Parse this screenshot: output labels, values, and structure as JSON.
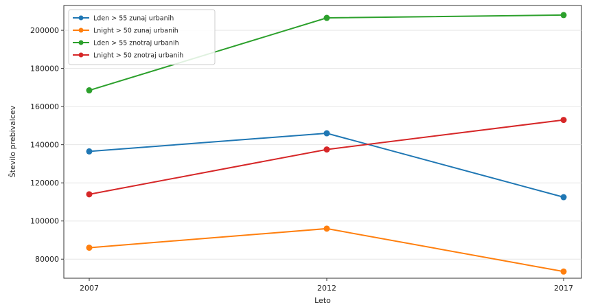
{
  "chart_data": {
    "type": "line",
    "title": "",
    "xlabel": "Leto",
    "ylabel": "Število prebivalcev",
    "categories": [
      "2007",
      "2012",
      "2017"
    ],
    "ylim": [
      70000,
      213000
    ],
    "yticks": [
      80000,
      100000,
      120000,
      140000,
      160000,
      180000,
      200000
    ],
    "grid": "horizontal",
    "legend_position": "top-left",
    "series": [
      {
        "name": "Lden > 55 zunaj urbanih",
        "color": "#1f77b4",
        "values": [
          136500,
          146000,
          112500
        ]
      },
      {
        "name": "Lnight > 50 zunaj urbanih",
        "color": "#ff7f0e",
        "values": [
          86000,
          96000,
          73500
        ]
      },
      {
        "name": "Lden > 55 znotraj urbanih",
        "color": "#2ca02c",
        "values": [
          168500,
          206500,
          208000
        ]
      },
      {
        "name": "Lnight > 50 znotraj urbanih",
        "color": "#d62728",
        "values": [
          114000,
          137500,
          153000
        ]
      }
    ]
  }
}
